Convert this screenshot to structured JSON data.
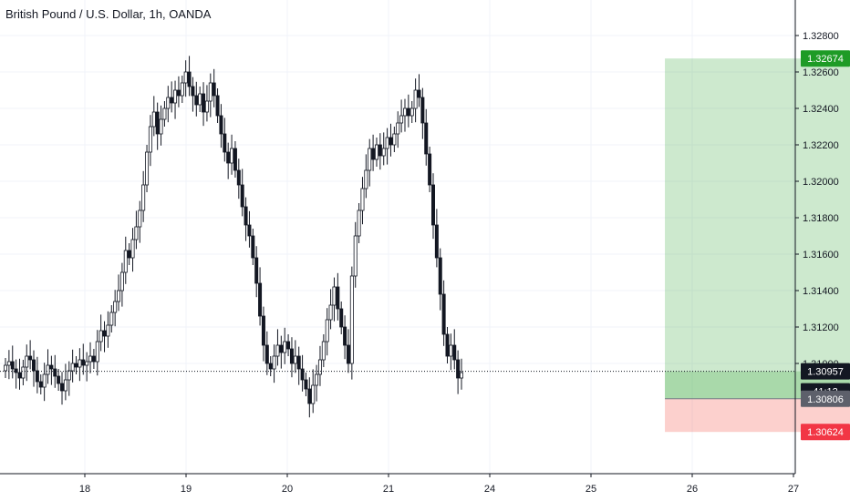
{
  "chart_data": {
    "type": "candlestick",
    "title": "British Pound / U.S. Dollar, 1h, OANDA",
    "x_tick_labels": [
      "18",
      "19",
      "20",
      "21",
      "24",
      "25",
      "26",
      "27"
    ],
    "y_tick_labels": [
      "1.32800",
      "1.32600",
      "1.32400",
      "1.32200",
      "1.32000",
      "1.31800",
      "1.31600",
      "1.31400",
      "1.31200",
      "1.31000"
    ],
    "ylim": [
      1.30555,
      1.32955
    ],
    "grid": true,
    "price_scale_side": "right",
    "current_price": "1.30957",
    "countdown": "41:12",
    "position": {
      "target": "1.32674",
      "entry": "1.30806",
      "stop": "1.30624",
      "start_x": 23.73,
      "end_x": 26.51
    },
    "candles_close": [
      1.3099,
      1.3101,
      1.3097,
      1.3095,
      1.3092,
      1.3098,
      1.3104,
      1.3102,
      1.3096,
      1.309,
      1.3087,
      1.3094,
      1.3099,
      1.3097,
      1.3093,
      1.3089,
      1.3085,
      1.3091,
      1.3096,
      1.31,
      1.3098,
      1.3102,
      1.3099,
      1.3101,
      1.3104,
      1.3101,
      1.3112,
      1.3118,
      1.3115,
      1.3121,
      1.3128,
      1.3134,
      1.314,
      1.315,
      1.3162,
      1.3158,
      1.3168,
      1.3175,
      1.3184,
      1.3198,
      1.3216,
      1.323,
      1.3238,
      1.3226,
      1.3234,
      1.324,
      1.3246,
      1.3243,
      1.325,
      1.3247,
      1.3254,
      1.326,
      1.3252,
      1.3247,
      1.3242,
      1.3248,
      1.3238,
      1.3244,
      1.3254,
      1.3247,
      1.3236,
      1.3226,
      1.3216,
      1.321,
      1.3218,
      1.3206,
      1.3198,
      1.3186,
      1.3176,
      1.317,
      1.3158,
      1.3144,
      1.3126,
      1.311,
      1.31,
      1.3097,
      1.3104,
      1.311,
      1.3106,
      1.3112,
      1.3108,
      1.31,
      1.3104,
      1.3097,
      1.3091,
      1.3086,
      1.3078,
      1.3088,
      1.3094,
      1.3102,
      1.3112,
      1.3124,
      1.3132,
      1.3142,
      1.313,
      1.312,
      1.311,
      1.31,
      1.3148,
      1.317,
      1.3184,
      1.3196,
      1.3206,
      1.3218,
      1.3212,
      1.322,
      1.3214,
      1.3218,
      1.3224,
      1.322,
      1.3226,
      1.3232,
      1.3236,
      1.324,
      1.3236,
      1.324,
      1.325,
      1.3246,
      1.3232,
      1.3215,
      1.3198,
      1.3176,
      1.3158,
      1.3138,
      1.3116,
      1.3104,
      1.311,
      1.3102,
      1.3092,
      1.3095
    ],
    "candles_label": "closes read approximately"
  }
}
